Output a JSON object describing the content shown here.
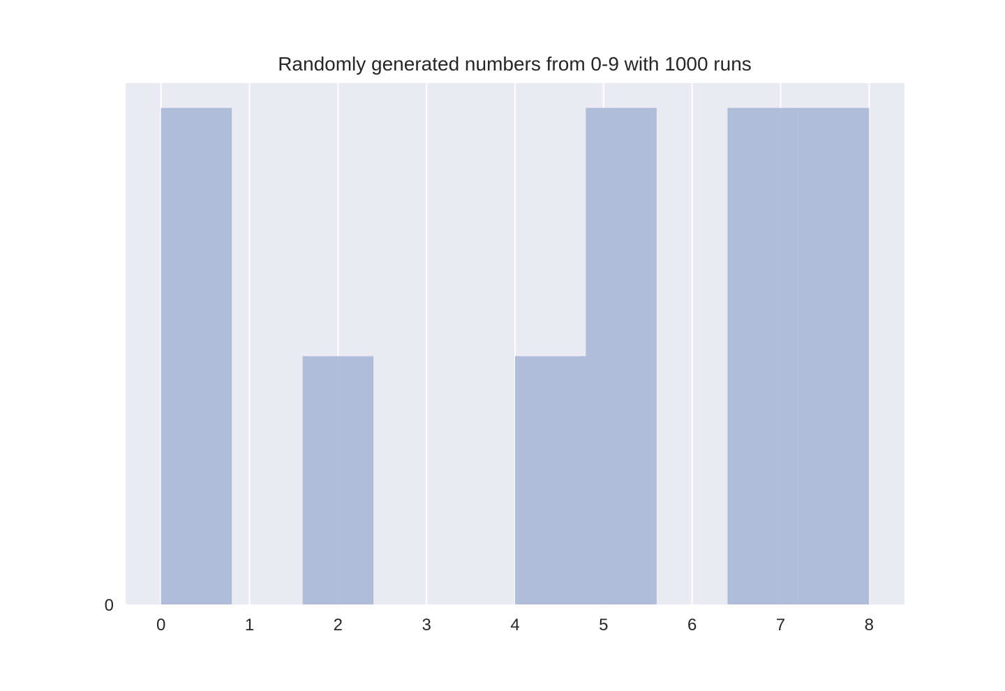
{
  "chart_data": {
    "type": "bar",
    "title": "Randomly generated numbers from 0-9 with 1000 runs",
    "xlabel": "",
    "ylabel": "",
    "bins": [
      {
        "start": 0.0,
        "end": 0.8,
        "value": 2
      },
      {
        "start": 1.6,
        "end": 2.4,
        "value": 1
      },
      {
        "start": 4.0,
        "end": 4.8,
        "value": 1
      },
      {
        "start": 4.8,
        "end": 5.6,
        "value": 2
      },
      {
        "start": 6.4,
        "end": 7.2,
        "value": 2
      },
      {
        "start": 7.2,
        "end": 8.0,
        "value": 2
      }
    ],
    "xlim": [
      -0.4,
      8.4
    ],
    "ylim": [
      0,
      2.1
    ],
    "xticks": [
      "0",
      "1",
      "2",
      "3",
      "4",
      "5",
      "6",
      "7",
      "8"
    ],
    "yticks": [
      "0"
    ],
    "grid": true,
    "colors": {
      "plot_bg": "#eaeaf2",
      "grid": "#ffffff",
      "bar": "#a9b8d7",
      "text": "#262626"
    }
  }
}
